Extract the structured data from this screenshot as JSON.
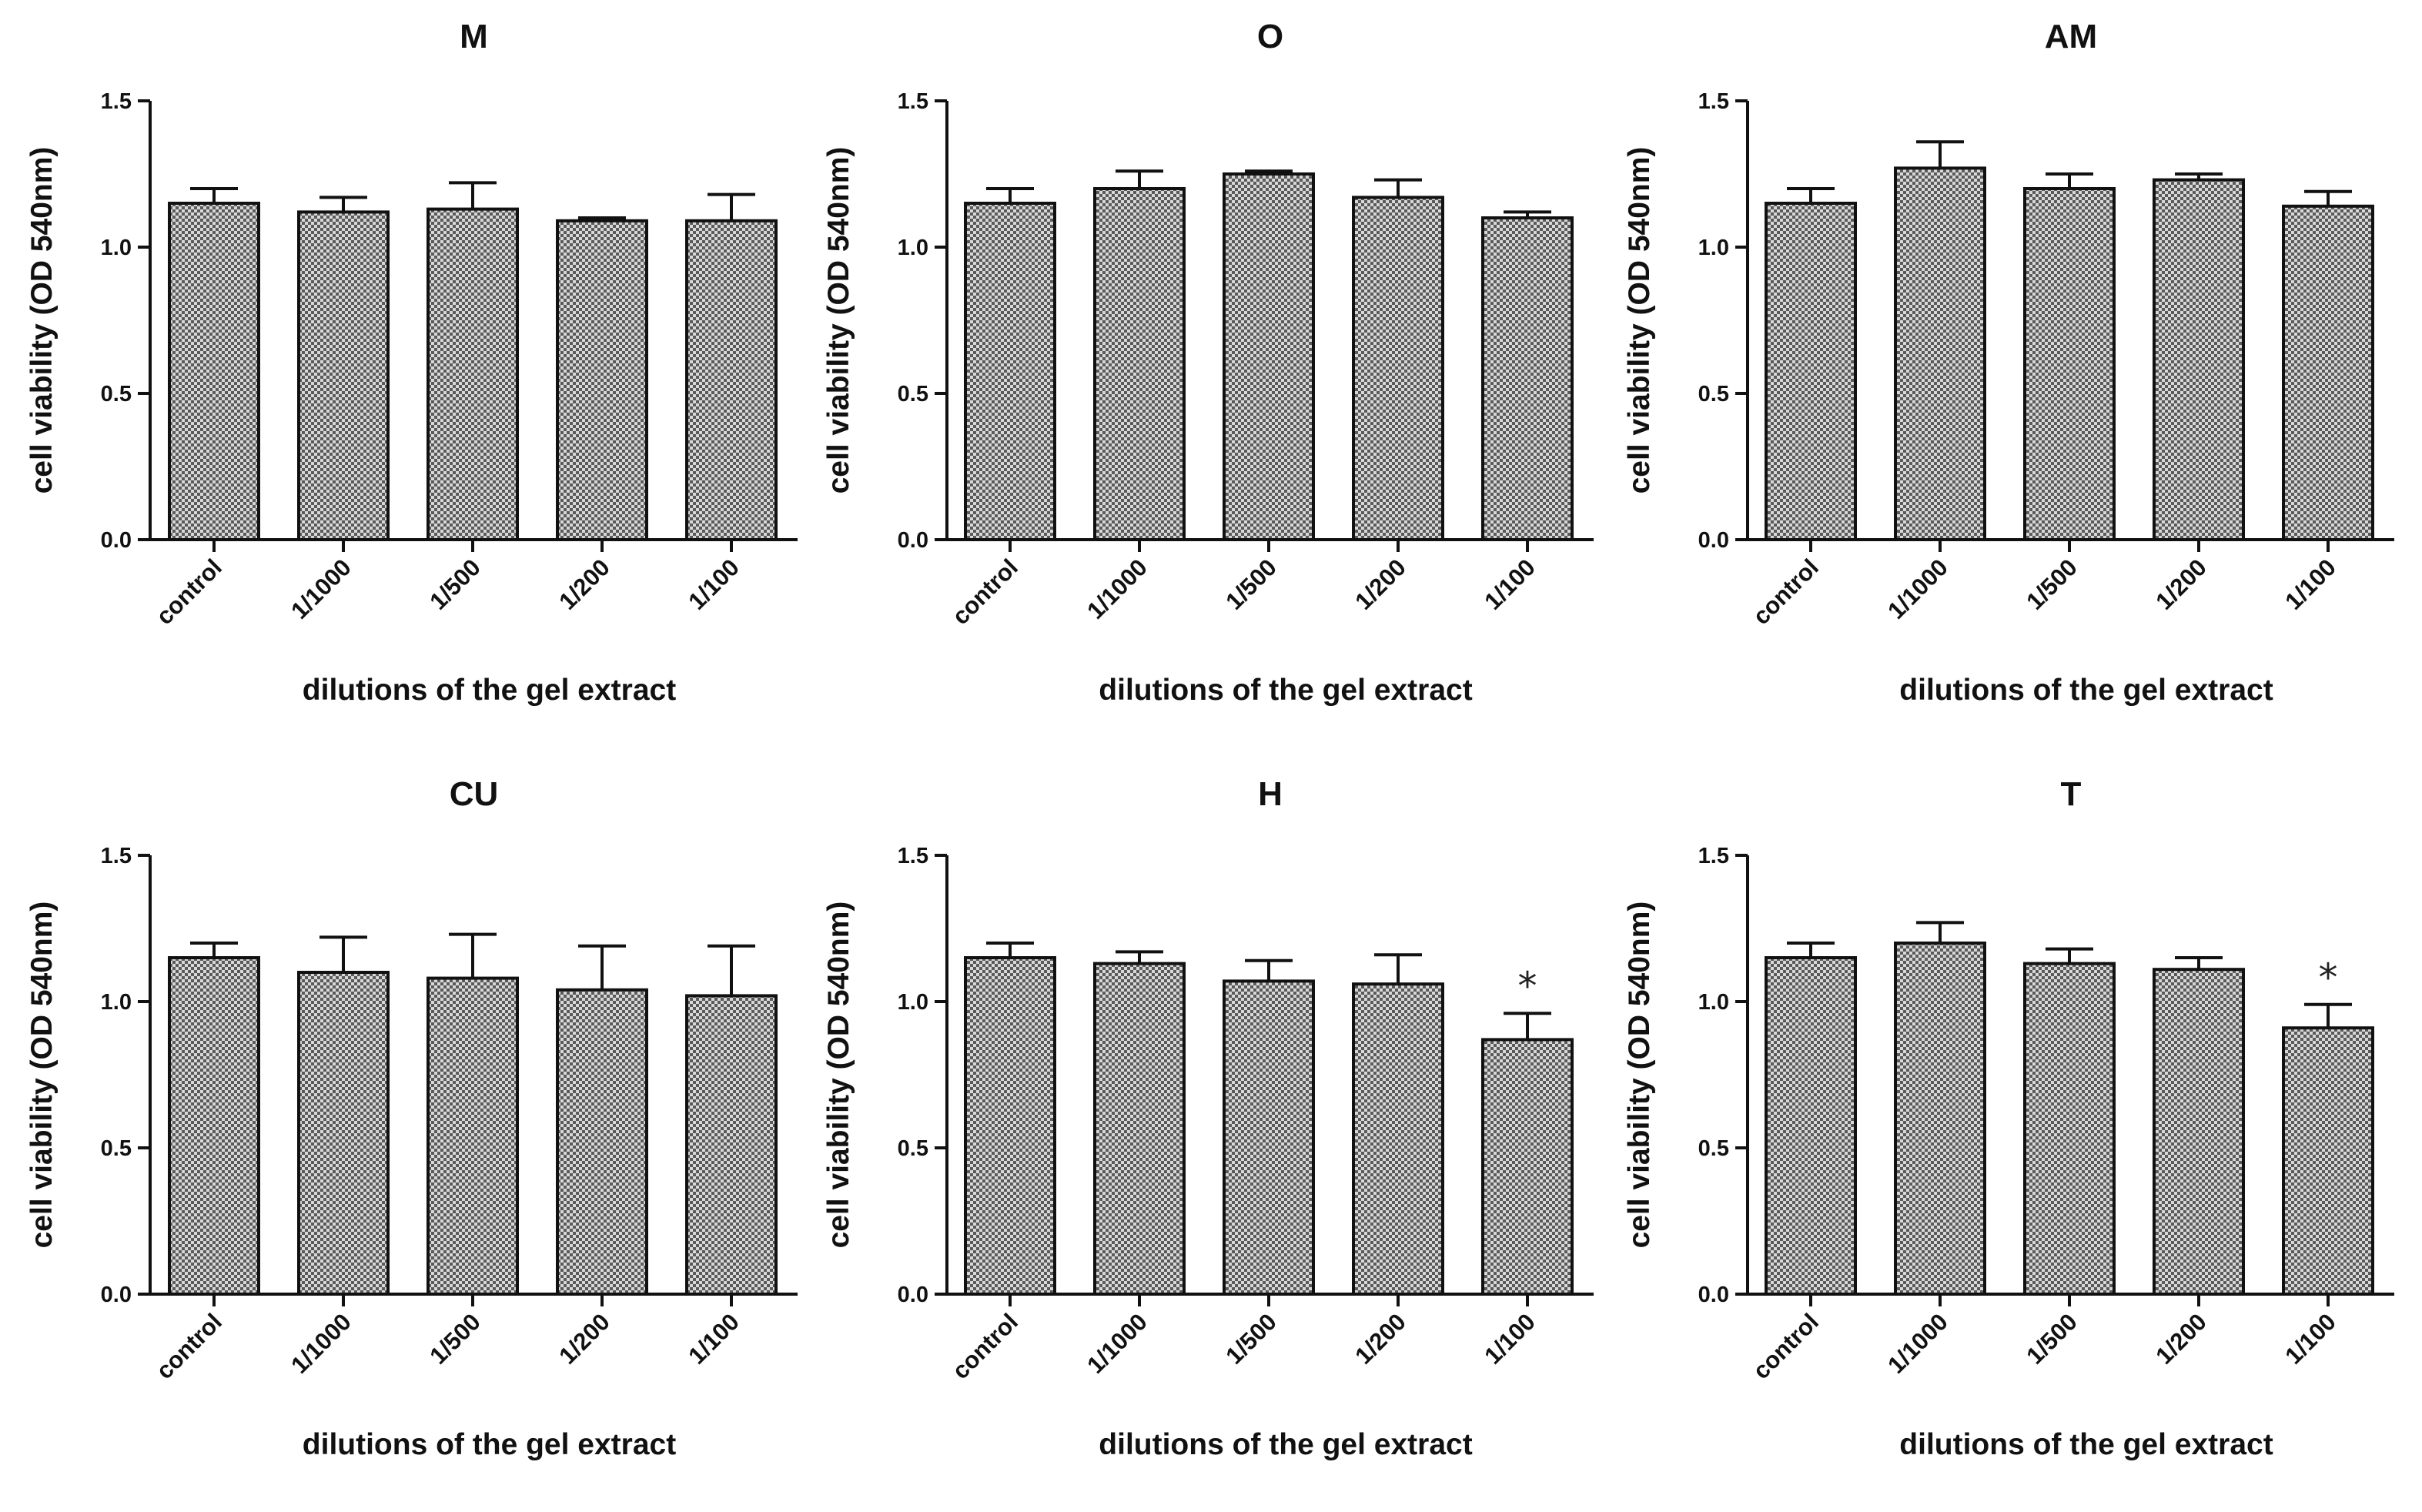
{
  "chart_data": [
    {
      "type": "bar",
      "title": "M",
      "xlabel": "dilutions of the gel extract",
      "ylabel": "cell viability (OD 540nm)",
      "ylim": [
        0,
        1.5
      ],
      "yticks": [
        "0.0",
        "0.5",
        "1.0",
        "1.5"
      ],
      "categories": [
        "control",
        "1/1000",
        "1/500",
        "1/200",
        "1/100"
      ],
      "values": [
        1.15,
        1.12,
        1.13,
        1.09,
        1.09
      ],
      "errors": [
        0.05,
        0.05,
        0.09,
        0.01,
        0.09
      ],
      "significance": [
        "",
        "",
        "",
        "",
        ""
      ]
    },
    {
      "type": "bar",
      "title": "O",
      "xlabel": "dilutions of the gel extract",
      "ylabel": "cell viability (OD 540nm)",
      "ylim": [
        0,
        1.5
      ],
      "yticks": [
        "0.0",
        "0.5",
        "1.0",
        "1.5"
      ],
      "categories": [
        "control",
        "1/1000",
        "1/500",
        "1/200",
        "1/100"
      ],
      "values": [
        1.15,
        1.2,
        1.25,
        1.17,
        1.1
      ],
      "errors": [
        0.05,
        0.06,
        0.01,
        0.06,
        0.02
      ],
      "significance": [
        "",
        "",
        "",
        "",
        ""
      ]
    },
    {
      "type": "bar",
      "title": "AM",
      "xlabel": "dilutions of the gel extract",
      "ylabel": "cell viability (OD 540nm)",
      "ylim": [
        0,
        1.5
      ],
      "yticks": [
        "0.0",
        "0.5",
        "1.0",
        "1.5"
      ],
      "categories": [
        "control",
        "1/1000",
        "1/500",
        "1/200",
        "1/100"
      ],
      "values": [
        1.15,
        1.27,
        1.2,
        1.23,
        1.14
      ],
      "errors": [
        0.05,
        0.09,
        0.05,
        0.02,
        0.05
      ],
      "significance": [
        "",
        "",
        "",
        "",
        ""
      ]
    },
    {
      "type": "bar",
      "title": "CU",
      "xlabel": "dilutions of the gel extract",
      "ylabel": "cell viability (OD 540nm)",
      "ylim": [
        0,
        1.5
      ],
      "yticks": [
        "0.0",
        "0.5",
        "1.0",
        "1.5"
      ],
      "categories": [
        "control",
        "1/1000",
        "1/500",
        "1/200",
        "1/100"
      ],
      "values": [
        1.15,
        1.1,
        1.08,
        1.04,
        1.02
      ],
      "errors": [
        0.05,
        0.12,
        0.15,
        0.15,
        0.17
      ],
      "significance": [
        "",
        "",
        "",
        "",
        ""
      ]
    },
    {
      "type": "bar",
      "title": "H",
      "xlabel": "dilutions of the gel extract",
      "ylabel": "cell viability (OD 540nm)",
      "ylim": [
        0,
        1.5
      ],
      "yticks": [
        "0.0",
        "0.5",
        "1.0",
        "1.5"
      ],
      "categories": [
        "control",
        "1/1000",
        "1/500",
        "1/200",
        "1/100"
      ],
      "values": [
        1.15,
        1.13,
        1.07,
        1.06,
        0.87
      ],
      "errors": [
        0.05,
        0.04,
        0.07,
        0.1,
        0.09
      ],
      "significance": [
        "",
        "",
        "",
        "",
        "*"
      ]
    },
    {
      "type": "bar",
      "title": "T",
      "xlabel": "dilutions of the gel extract",
      "ylabel": "cell viability (OD 540nm)",
      "ylim": [
        0,
        1.5
      ],
      "yticks": [
        "0.0",
        "0.5",
        "1.0",
        "1.5"
      ],
      "categories": [
        "control",
        "1/1000",
        "1/500",
        "1/200",
        "1/100"
      ],
      "values": [
        1.15,
        1.2,
        1.13,
        1.11,
        0.91
      ],
      "errors": [
        0.05,
        0.07,
        0.05,
        0.04,
        0.08
      ],
      "significance": [
        "",
        "",
        "",
        "",
        "*"
      ]
    }
  ],
  "colors": {
    "bar_fill": "#9a9a9a",
    "bar_pattern_dark": "#5a5a5a",
    "bar_pattern_light": "#d8d8d8",
    "axis": "#111111",
    "text": "#111111"
  }
}
